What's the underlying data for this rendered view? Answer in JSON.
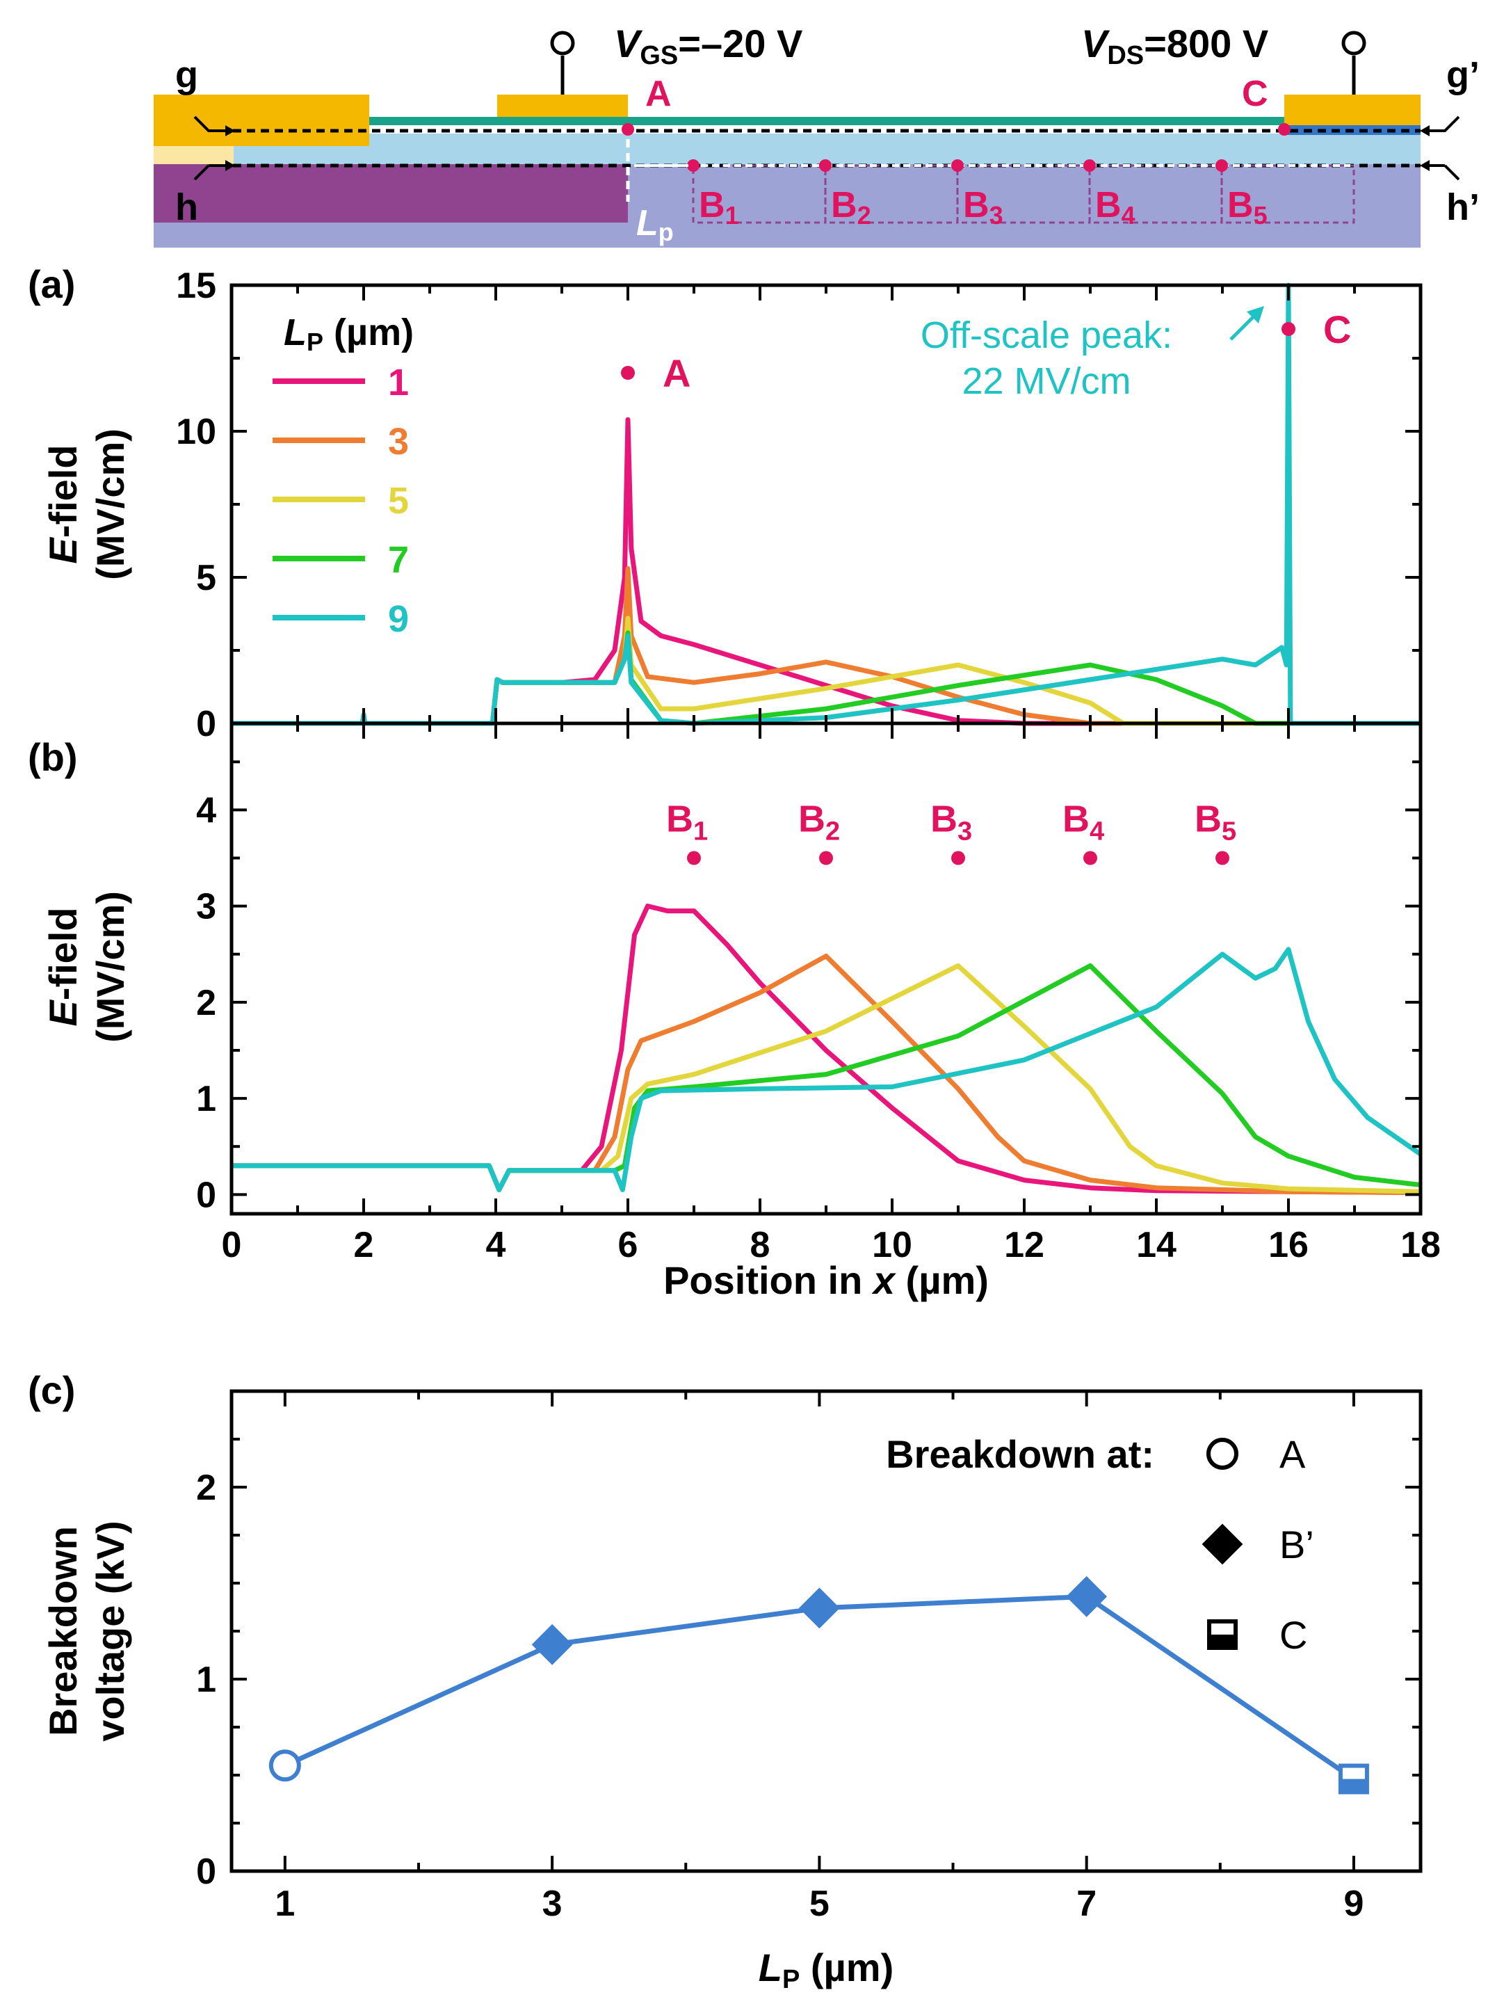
{
  "colors": {
    "lp1": "#e8157b",
    "lp3": "#ee7d32",
    "lp5": "#e2d63c",
    "lp7": "#22cc22",
    "lp9": "#1fc3c3",
    "annotation": "#e0135e",
    "bv_line": "#3f7fcf",
    "gate_metal": "#f5b800",
    "passivation": "#1aa389",
    "channel": "#a8d5ea",
    "substrate": "#90448f",
    "buffer": "#9ea3d6",
    "thin_layer": "#fbe6a3",
    "blue_strip": "#3575c8"
  },
  "device": {
    "vgs_prefix": "V",
    "vgs_sub": "GS",
    "vgs_value": "=–20 V",
    "vds_prefix": "V",
    "vds_sub": "DS",
    "vds_value": "=800 V",
    "g": "g",
    "g_prime": "g’",
    "h": "h",
    "h_prime": "h’",
    "A": "A",
    "C": "C",
    "B_letter": "B",
    "B_subs": [
      "1",
      "2",
      "3",
      "4",
      "5"
    ],
    "lp_letter": "L",
    "lp_sub": "p"
  },
  "chart_data": [
    {
      "panel": "(a)",
      "type": "line",
      "xlim": [
        0,
        18
      ],
      "ylim": [
        0,
        15
      ],
      "ylabel_italic": "E",
      "ylabel_rest": "-field",
      "ylabel_unit": "(MV/cm)",
      "yticks": [
        "0",
        "5",
        "10",
        "15"
      ],
      "legend_title_letter": "L",
      "legend_title_sub": "P",
      "legend_title_unit": " (µm)",
      "legend_placement": "top-left",
      "annotation_A": "A",
      "annotation_C": "C",
      "offscale_line1": "Off-scale peak:",
      "offscale_line2": "22 MV/cm",
      "markers": [
        {
          "label": "A",
          "x": 6,
          "y": 12
        },
        {
          "label": "C",
          "x": 16,
          "y": 13.5
        }
      ],
      "series": [
        {
          "name": "1",
          "color_key": "lp1",
          "points": [
            [
              0,
              0
            ],
            [
              2,
              0
            ],
            [
              3.95,
              0
            ],
            [
              4.02,
              1.5
            ],
            [
              4.1,
              1.4
            ],
            [
              5,
              1.4
            ],
            [
              5.5,
              1.5
            ],
            [
              5.8,
              2.5
            ],
            [
              5.95,
              5
            ],
            [
              6.0,
              10.4
            ],
            [
              6.05,
              6
            ],
            [
              6.2,
              3.5
            ],
            [
              6.5,
              3
            ],
            [
              7,
              2.7
            ],
            [
              8,
              2
            ],
            [
              9,
              1.3
            ],
            [
              10,
              0.6
            ],
            [
              11,
              0.1
            ],
            [
              12,
              0
            ],
            [
              18,
              0
            ]
          ]
        },
        {
          "name": "3",
          "color_key": "lp3",
          "points": [
            [
              0,
              0
            ],
            [
              2,
              0
            ],
            [
              3.95,
              0
            ],
            [
              4.02,
              1.5
            ],
            [
              4.1,
              1.4
            ],
            [
              5.8,
              1.4
            ],
            [
              5.95,
              3
            ],
            [
              6.0,
              5.3
            ],
            [
              6.05,
              3
            ],
            [
              6.3,
              1.6
            ],
            [
              7,
              1.4
            ],
            [
              8,
              1.7
            ],
            [
              9,
              2.1
            ],
            [
              10,
              1.6
            ],
            [
              11,
              0.9
            ],
            [
              12,
              0.3
            ],
            [
              13,
              0
            ],
            [
              18,
              0
            ]
          ]
        },
        {
          "name": "5",
          "color_key": "lp5",
          "points": [
            [
              0,
              0
            ],
            [
              2,
              0
            ],
            [
              3.95,
              0
            ],
            [
              4.02,
              1.5
            ],
            [
              4.1,
              1.4
            ],
            [
              5.8,
              1.4
            ],
            [
              5.95,
              2.2
            ],
            [
              6.0,
              3.6
            ],
            [
              6.05,
              2
            ],
            [
              6.5,
              0.5
            ],
            [
              7,
              0.5
            ],
            [
              9,
              1.2
            ],
            [
              11,
              2
            ],
            [
              12,
              1.4
            ],
            [
              13,
              0.7
            ],
            [
              13.5,
              0
            ],
            [
              18,
              0
            ]
          ]
        },
        {
          "name": "7",
          "color_key": "lp7",
          "points": [
            [
              0,
              0
            ],
            [
              2,
              0
            ],
            [
              3.95,
              0
            ],
            [
              4.02,
              1.5
            ],
            [
              4.1,
              1.4
            ],
            [
              5.8,
              1.4
            ],
            [
              5.95,
              2.2
            ],
            [
              6.0,
              3.1
            ],
            [
              6.05,
              1.5
            ],
            [
              6.5,
              0.1
            ],
            [
              7,
              0
            ],
            [
              9,
              0.5
            ],
            [
              11,
              1.3
            ],
            [
              13,
              2
            ],
            [
              14,
              1.5
            ],
            [
              15,
              0.6
            ],
            [
              15.5,
              0
            ],
            [
              18,
              0
            ]
          ]
        },
        {
          "name": "9",
          "color_key": "lp9",
          "points": [
            [
              0,
              0
            ],
            [
              1.98,
              0
            ],
            [
              2.0,
              0.3
            ],
            [
              2.02,
              0
            ],
            [
              3.95,
              0
            ],
            [
              4.02,
              1.5
            ],
            [
              4.1,
              1.4
            ],
            [
              5.8,
              1.4
            ],
            [
              5.95,
              2.2
            ],
            [
              6.0,
              3
            ],
            [
              6.05,
              1.4
            ],
            [
              6.5,
              0.1
            ],
            [
              7,
              0
            ],
            [
              9,
              0.2
            ],
            [
              11,
              0.8
            ],
            [
              13,
              1.5
            ],
            [
              15,
              2.2
            ],
            [
              15.5,
              2
            ],
            [
              15.9,
              2.6
            ],
            [
              15.97,
              2
            ],
            [
              16.0,
              15
            ],
            [
              16.03,
              0
            ],
            [
              18,
              0
            ]
          ]
        }
      ]
    },
    {
      "panel": "(b)",
      "type": "line",
      "xlim": [
        0,
        18
      ],
      "ylim": [
        -0.2,
        4.9
      ],
      "ylabel_italic": "E",
      "ylabel_rest": "-field",
      "ylabel_unit": "(MV/cm)",
      "yticks": [
        "0",
        "1",
        "2",
        "3",
        "4"
      ],
      "xticks": [
        "0",
        "2",
        "4",
        "6",
        "8",
        "10",
        "12",
        "14",
        "16",
        "18"
      ],
      "xlabel_prefix": "Position in ",
      "xlabel_italic": "x",
      "xlabel_unit": " (µm)",
      "markers": [
        {
          "label": "B",
          "sub": "1",
          "x": 7,
          "y": 3.5
        },
        {
          "label": "B",
          "sub": "2",
          "x": 9,
          "y": 3.5
        },
        {
          "label": "B",
          "sub": "3",
          "x": 11,
          "y": 3.5
        },
        {
          "label": "B",
          "sub": "4",
          "x": 13,
          "y": 3.5
        },
        {
          "label": "B",
          "sub": "5",
          "x": 15,
          "y": 3.5
        }
      ],
      "series": [
        {
          "name": "1",
          "color_key": "lp1",
          "points": [
            [
              0,
              0.3
            ],
            [
              3.9,
              0.3
            ],
            [
              4.05,
              0.05
            ],
            [
              4.2,
              0.25
            ],
            [
              5.3,
              0.25
            ],
            [
              5.6,
              0.5
            ],
            [
              5.9,
              1.5
            ],
            [
              6.1,
              2.7
            ],
            [
              6.3,
              3.0
            ],
            [
              6.6,
              2.95
            ],
            [
              7,
              2.95
            ],
            [
              7.5,
              2.6
            ],
            [
              8,
              2.2
            ],
            [
              9,
              1.5
            ],
            [
              10,
              0.9
            ],
            [
              11,
              0.35
            ],
            [
              12,
              0.15
            ],
            [
              13,
              0.07
            ],
            [
              14,
              0.04
            ],
            [
              18,
              0.02
            ]
          ]
        },
        {
          "name": "3",
          "color_key": "lp3",
          "points": [
            [
              0,
              0.3
            ],
            [
              3.9,
              0.3
            ],
            [
              4.05,
              0.05
            ],
            [
              4.2,
              0.25
            ],
            [
              5.5,
              0.25
            ],
            [
              5.8,
              0.6
            ],
            [
              6,
              1.3
            ],
            [
              6.2,
              1.6
            ],
            [
              7,
              1.8
            ],
            [
              8,
              2.1
            ],
            [
              9,
              2.48
            ],
            [
              10,
              1.8
            ],
            [
              11,
              1.1
            ],
            [
              11.6,
              0.6
            ],
            [
              12,
              0.35
            ],
            [
              13,
              0.15
            ],
            [
              14,
              0.07
            ],
            [
              16,
              0.03
            ],
            [
              18,
              0.02
            ]
          ]
        },
        {
          "name": "5",
          "color_key": "lp5",
          "points": [
            [
              0,
              0.3
            ],
            [
              3.9,
              0.3
            ],
            [
              4.05,
              0.05
            ],
            [
              4.2,
              0.25
            ],
            [
              5.6,
              0.25
            ],
            [
              5.85,
              0.4
            ],
            [
              6.05,
              1
            ],
            [
              6.3,
              1.15
            ],
            [
              7,
              1.25
            ],
            [
              9,
              1.7
            ],
            [
              11,
              2.38
            ],
            [
              12,
              1.75
            ],
            [
              13,
              1.1
            ],
            [
              13.6,
              0.5
            ],
            [
              14,
              0.3
            ],
            [
              15,
              0.12
            ],
            [
              16,
              0.06
            ],
            [
              18,
              0.03
            ]
          ]
        },
        {
          "name": "7",
          "color_key": "lp7",
          "points": [
            [
              0,
              0.3
            ],
            [
              3.9,
              0.3
            ],
            [
              4.05,
              0.05
            ],
            [
              4.2,
              0.25
            ],
            [
              5.8,
              0.25
            ],
            [
              5.95,
              0.3
            ],
            [
              6.1,
              0.9
            ],
            [
              6.3,
              1.08
            ],
            [
              7,
              1.12
            ],
            [
              9,
              1.25
            ],
            [
              11,
              1.65
            ],
            [
              13,
              2.38
            ],
            [
              14,
              1.7
            ],
            [
              15,
              1.05
            ],
            [
              15.5,
              0.6
            ],
            [
              16,
              0.4
            ],
            [
              17,
              0.18
            ],
            [
              18,
              0.1
            ]
          ]
        },
        {
          "name": "9",
          "color_key": "lp9",
          "points": [
            [
              0,
              0.3
            ],
            [
              3.9,
              0.3
            ],
            [
              4.05,
              0.05
            ],
            [
              4.2,
              0.25
            ],
            [
              5.8,
              0.25
            ],
            [
              5.92,
              0.05
            ],
            [
              6.05,
              0.6
            ],
            [
              6.2,
              1
            ],
            [
              6.5,
              1.08
            ],
            [
              8,
              1.1
            ],
            [
              10,
              1.12
            ],
            [
              12,
              1.4
            ],
            [
              14,
              1.95
            ],
            [
              15,
              2.5
            ],
            [
              15.5,
              2.25
            ],
            [
              15.8,
              2.35
            ],
            [
              16,
              2.55
            ],
            [
              16.3,
              1.8
            ],
            [
              16.7,
              1.2
            ],
            [
              17.2,
              0.8
            ],
            [
              18,
              0.42
            ]
          ]
        }
      ]
    },
    {
      "panel": "(c)",
      "type": "line",
      "xlim": [
        0.6,
        9.5
      ],
      "ylim": [
        0,
        2.5
      ],
      "ylabel_line1": "Breakdown",
      "ylabel_line2": "voltage (kV)",
      "yticks": [
        "0",
        "1",
        "2"
      ],
      "xticks": [
        "1",
        "3",
        "5",
        "7",
        "9"
      ],
      "xlabel_letter": "L",
      "xlabel_sub": "P",
      "xlabel_unit": " (µm)",
      "legend_title": "Breakdown at:",
      "legend_placement": "top-right",
      "legend_items": [
        {
          "marker": "circle",
          "label": "A"
        },
        {
          "marker": "diamond",
          "label": "B’"
        },
        {
          "marker": "square",
          "label": "C"
        }
      ],
      "x": [
        1,
        3,
        5,
        7,
        9
      ],
      "values": [
        0.55,
        1.18,
        1.37,
        1.43,
        0.48
      ],
      "markers": [
        "circle",
        "diamond",
        "diamond",
        "diamond",
        "square"
      ]
    }
  ]
}
